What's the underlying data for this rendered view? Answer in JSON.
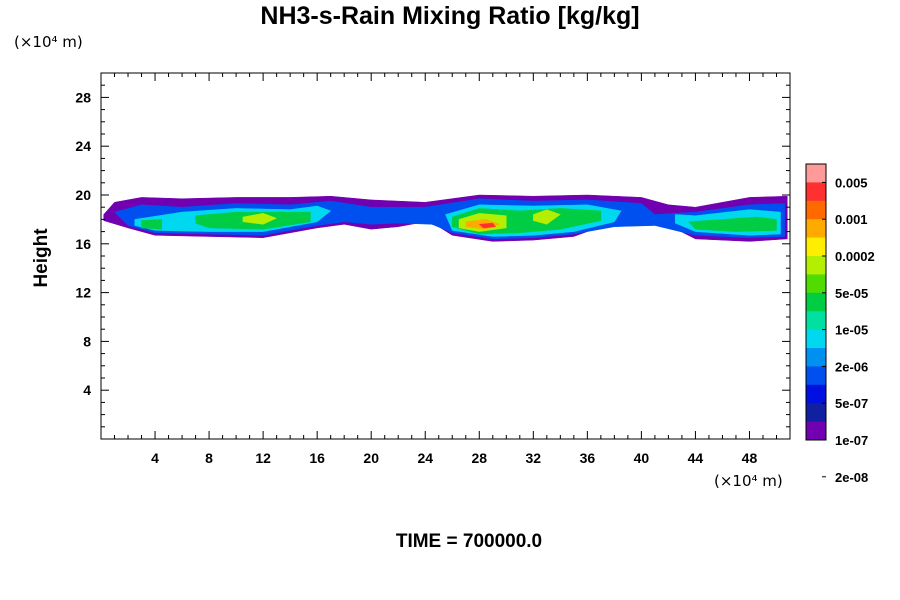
{
  "chart_data": {
    "type": "contour",
    "title": "NH3-s-Rain Mixing Ratio [kg/kg]",
    "xlabel": "",
    "ylabel": "Height",
    "x_unit": "(×10⁴ m)",
    "y_unit": "(×10⁴ m)",
    "xlim": [
      0,
      51
    ],
    "ylim": [
      0,
      30
    ],
    "x_ticks": [
      4,
      8,
      12,
      16,
      20,
      24,
      28,
      32,
      36,
      40,
      44,
      48
    ],
    "y_ticks": [
      4,
      8,
      12,
      16,
      20,
      24,
      28
    ],
    "colorbar": {
      "labels": [
        "0.005",
        "0.001",
        "0.0002",
        "5e-05",
        "1e-05",
        "2e-06",
        "5e-07",
        "1e-07",
        "2e-08"
      ],
      "colors": [
        "#ff9a9a",
        "#ff3030",
        "#ff6a00",
        "#ffaa00",
        "#ffee00",
        "#b4ee00",
        "#50dc00",
        "#00cc44",
        "#00e0a0",
        "#00d8f0",
        "#0090f0",
        "#0050f0",
        "#0010e0",
        "#1020a0",
        "#7000b0"
      ]
    },
    "bands": [
      {
        "name": "outer-band",
        "level": 14,
        "points": [
          [
            0.2,
            18.4
          ],
          [
            1,
            19.4
          ],
          [
            3,
            19.8
          ],
          [
            6,
            19.7
          ],
          [
            10,
            19.8
          ],
          [
            14,
            19.8
          ],
          [
            17,
            19.9
          ],
          [
            20,
            19.6
          ],
          [
            24,
            19.4
          ],
          [
            28,
            20.0
          ],
          [
            32,
            19.9
          ],
          [
            36,
            20.0
          ],
          [
            40,
            19.8
          ],
          [
            42,
            19.2
          ],
          [
            44,
            19.0
          ],
          [
            48,
            19.8
          ],
          [
            50.8,
            19.9
          ],
          [
            50.8,
            16.4
          ],
          [
            48,
            16.2
          ],
          [
            44,
            16.4
          ],
          [
            41.5,
            17.8
          ],
          [
            40,
            18.0
          ],
          [
            38,
            17.8
          ],
          [
            35,
            16.6
          ],
          [
            32,
            16.3
          ],
          [
            29,
            16.2
          ],
          [
            26,
            16.7
          ],
          [
            25,
            17.4
          ],
          [
            24,
            17.8
          ],
          [
            22,
            17.4
          ],
          [
            20,
            17.2
          ],
          [
            18,
            17.6
          ],
          [
            16,
            17.3
          ],
          [
            12,
            16.5
          ],
          [
            8,
            16.6
          ],
          [
            4,
            16.7
          ],
          [
            2,
            17.3
          ],
          [
            0.2,
            17.9
          ]
        ]
      },
      {
        "name": "blue-band",
        "level": 11,
        "points": [
          [
            1,
            18.6
          ],
          [
            3,
            19.2
          ],
          [
            6,
            19.0
          ],
          [
            10,
            19.3
          ],
          [
            14,
            19.2
          ],
          [
            17,
            19.5
          ],
          [
            20,
            19.0
          ],
          [
            24,
            19.0
          ],
          [
            28,
            19.7
          ],
          [
            32,
            19.5
          ],
          [
            36,
            19.6
          ],
          [
            40,
            19.3
          ],
          [
            41,
            18.4
          ],
          [
            44,
            18.6
          ],
          [
            48,
            19.2
          ],
          [
            50.6,
            19.3
          ],
          [
            50.6,
            16.6
          ],
          [
            48,
            16.5
          ],
          [
            44,
            16.7
          ],
          [
            41,
            17.5
          ],
          [
            38,
            17.4
          ],
          [
            35,
            16.8
          ],
          [
            32,
            16.5
          ],
          [
            29,
            16.4
          ],
          [
            26,
            16.9
          ],
          [
            24.5,
            17.6
          ],
          [
            22,
            17.7
          ],
          [
            20,
            17.6
          ],
          [
            18,
            17.8
          ],
          [
            16,
            17.5
          ],
          [
            12,
            16.7
          ],
          [
            8,
            16.8
          ],
          [
            4,
            16.9
          ],
          [
            2,
            17.5
          ]
        ]
      },
      {
        "name": "cyan-band",
        "level": 9,
        "points": [
          [
            2.5,
            18.0
          ],
          [
            6,
            18.6
          ],
          [
            10,
            18.9
          ],
          [
            14,
            18.8
          ],
          [
            16,
            19.1
          ],
          [
            17,
            18.7
          ],
          [
            16,
            17.8
          ],
          [
            12,
            17.0
          ],
          [
            8,
            17.0
          ],
          [
            4,
            17.1
          ],
          [
            2.5,
            17.5
          ]
        ]
      },
      {
        "name": "cyan-band-center",
        "level": 9,
        "points": [
          [
            25.5,
            18.4
          ],
          [
            28,
            19.2
          ],
          [
            32,
            19.1
          ],
          [
            36,
            19.2
          ],
          [
            38.5,
            18.7
          ],
          [
            38,
            17.8
          ],
          [
            35,
            17.0
          ],
          [
            32,
            16.7
          ],
          [
            29,
            16.6
          ],
          [
            26,
            17.1
          ]
        ]
      },
      {
        "name": "cyan-band-right",
        "level": 9,
        "points": [
          [
            42.5,
            18.4
          ],
          [
            44,
            18.3
          ],
          [
            48,
            18.8
          ],
          [
            50.3,
            18.6
          ],
          [
            50.3,
            16.8
          ],
          [
            48,
            16.7
          ],
          [
            44,
            17.0
          ],
          [
            42.5,
            17.7
          ]
        ]
      },
      {
        "name": "green-left",
        "level": 7,
        "points": [
          [
            3,
            17.9
          ],
          [
            4.5,
            18.0
          ],
          [
            4.5,
            17.2
          ],
          [
            3,
            17.3
          ]
        ]
      },
      {
        "name": "green-mid-left",
        "level": 7,
        "points": [
          [
            7,
            18.3
          ],
          [
            10,
            18.6
          ],
          [
            13,
            18.6
          ],
          [
            15.5,
            18.6
          ],
          [
            15.5,
            17.8
          ],
          [
            12,
            17.2
          ],
          [
            8,
            17.3
          ],
          [
            7,
            17.7
          ]
        ]
      },
      {
        "name": "green-center",
        "level": 7,
        "points": [
          [
            26,
            18.2
          ],
          [
            28,
            18.9
          ],
          [
            31,
            18.7
          ],
          [
            34,
            18.9
          ],
          [
            37,
            18.7
          ],
          [
            37,
            17.9
          ],
          [
            34,
            17.2
          ],
          [
            31,
            16.9
          ],
          [
            28,
            16.8
          ],
          [
            26,
            17.4
          ]
        ]
      },
      {
        "name": "green-right",
        "level": 7,
        "points": [
          [
            43.5,
            17.8
          ],
          [
            46,
            18.0
          ],
          [
            48.5,
            18.2
          ],
          [
            50,
            18.0
          ],
          [
            50,
            17.1
          ],
          [
            47,
            17.0
          ],
          [
            44,
            17.2
          ]
        ]
      },
      {
        "name": "yellow-mid-left",
        "level": 5,
        "points": [
          [
            10.5,
            18.2
          ],
          [
            12,
            18.5
          ],
          [
            13,
            18.1
          ],
          [
            12,
            17.6
          ],
          [
            10.5,
            17.8
          ]
        ]
      },
      {
        "name": "yellow-center",
        "level": 5,
        "points": [
          [
            26.5,
            18.0
          ],
          [
            28,
            18.5
          ],
          [
            30,
            18.3
          ],
          [
            30,
            17.3
          ],
          [
            28,
            17.0
          ],
          [
            26.5,
            17.3
          ]
        ]
      },
      {
        "name": "yellow-center-2",
        "level": 5,
        "points": [
          [
            32,
            18.4
          ],
          [
            33,
            18.8
          ],
          [
            34,
            18.4
          ],
          [
            33,
            17.6
          ],
          [
            32,
            17.9
          ]
        ]
      },
      {
        "name": "orange-center",
        "level": 3,
        "points": [
          [
            27,
            17.8
          ],
          [
            28.5,
            18.0
          ],
          [
            29.5,
            17.6
          ],
          [
            28.5,
            17.2
          ],
          [
            27,
            17.4
          ]
        ]
      },
      {
        "name": "red-center",
        "level": 1,
        "points": [
          [
            28,
            17.6
          ],
          [
            29,
            17.7
          ],
          [
            29.2,
            17.4
          ],
          [
            28.3,
            17.3
          ]
        ]
      }
    ]
  },
  "footer": {
    "time_label": "TIME = 700000.0"
  }
}
